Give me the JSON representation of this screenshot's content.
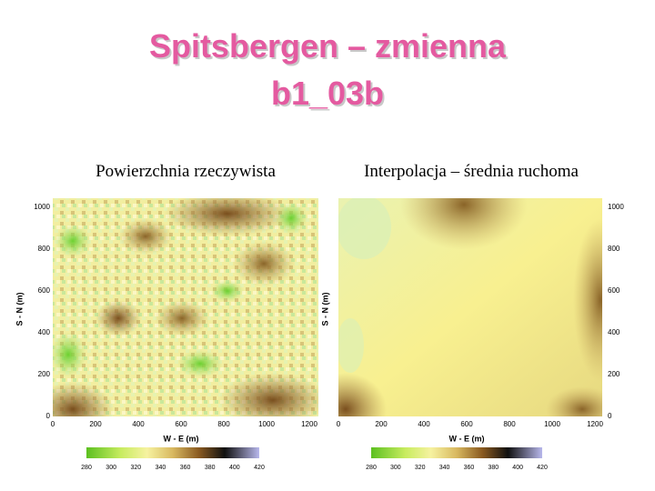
{
  "title": [
    "Spitsbergen – zmienna",
    "b1_03b"
  ],
  "panels": [
    {
      "caption": "Powierzchnia rzeczywista",
      "x_label": "W - E (m)",
      "y_label": "S - N (m)",
      "x_ticks": [
        "0",
        "200",
        "400",
        "600",
        "800",
        "1000",
        "1200"
      ],
      "y_ticks": [
        "0",
        "200",
        "400",
        "600",
        "800",
        "1000"
      ],
      "colorbar_ticks": [
        "280",
        "300",
        "320",
        "340",
        "360",
        "380",
        "400",
        "420"
      ]
    },
    {
      "caption": "Interpolacja – średnia ruchoma",
      "x_label": "W - E (m)",
      "y_label": "S - N (m)",
      "x_ticks": [
        "0",
        "200",
        "400",
        "600",
        "800",
        "1000",
        "1200"
      ],
      "y_ticks": [
        "0",
        "200",
        "400",
        "600",
        "800",
        "1000"
      ],
      "colorbar_ticks": [
        "280",
        "300",
        "320",
        "340",
        "360",
        "380",
        "400",
        "420"
      ]
    }
  ]
}
